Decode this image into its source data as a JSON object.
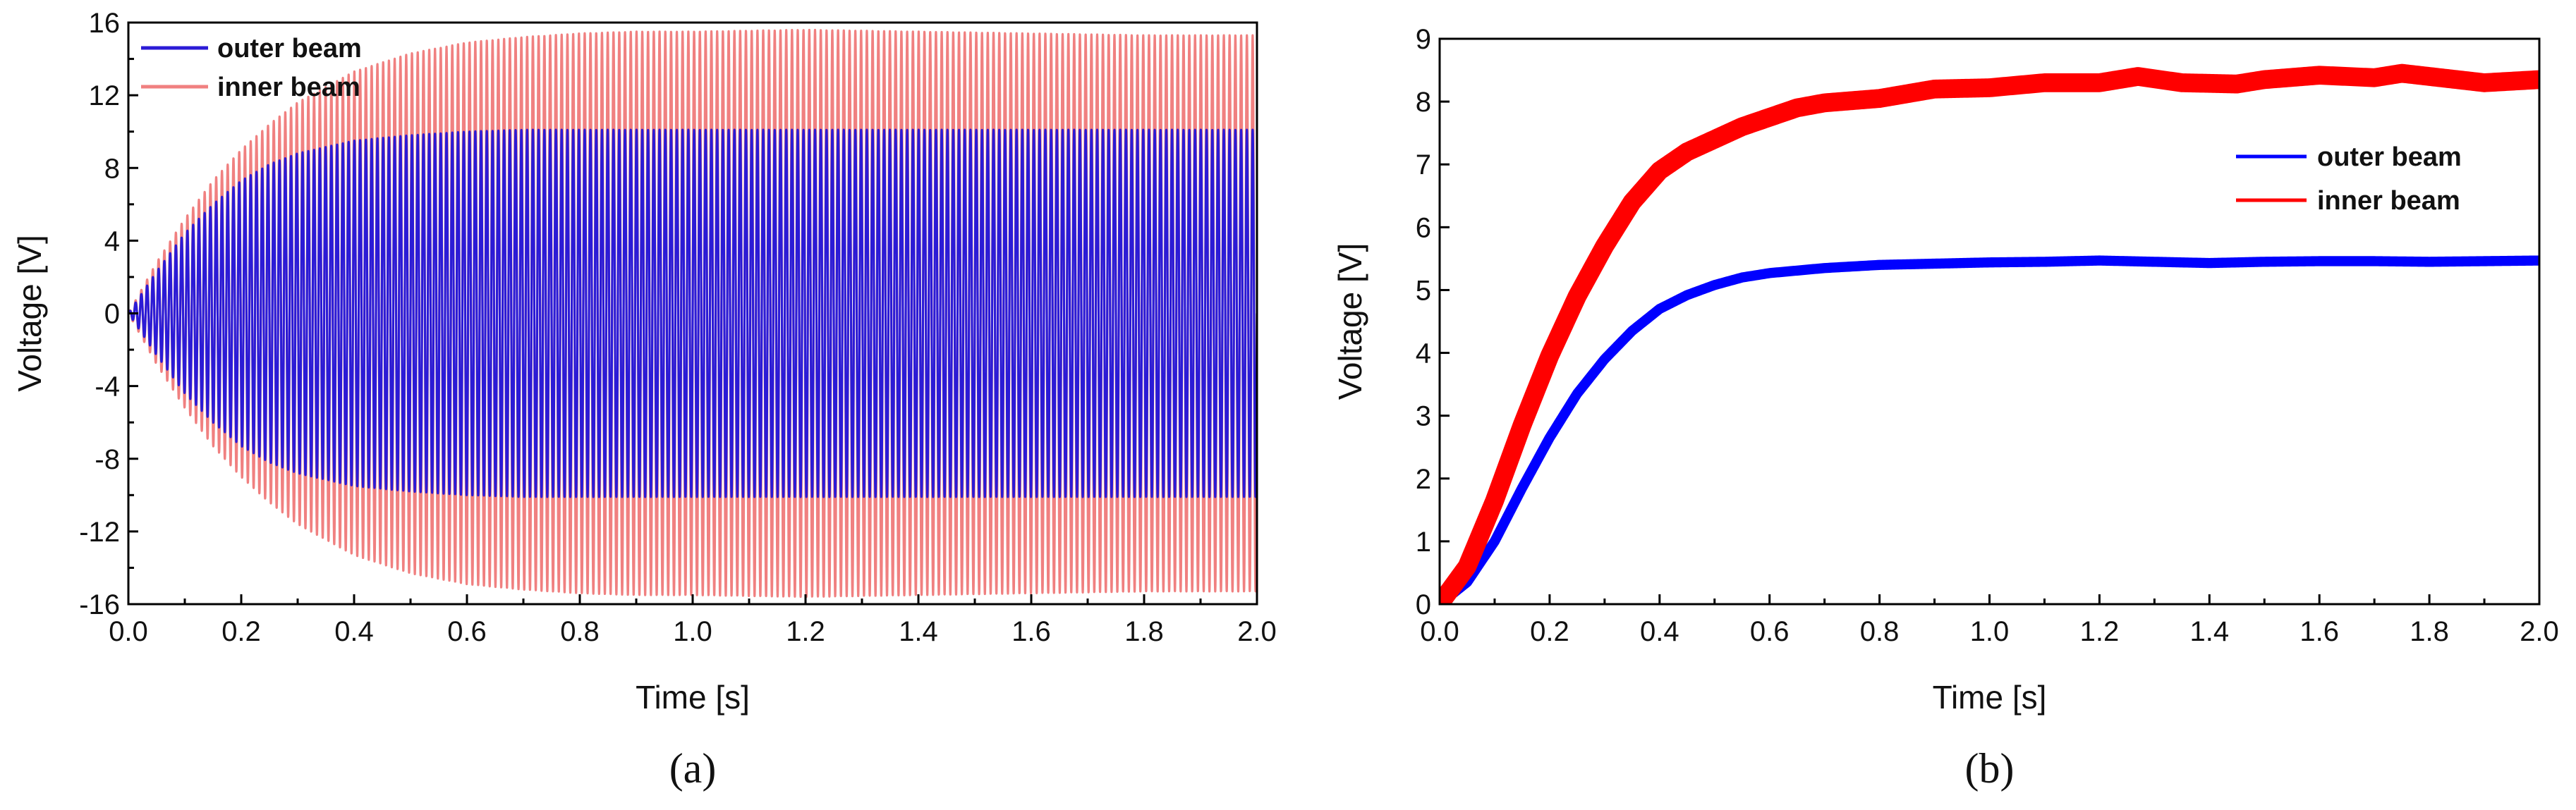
{
  "chart_data": [
    {
      "panel_label": "(a)",
      "type": "line",
      "title": "",
      "xlabel": "Time [s]",
      "ylabel": "Voltage [V]",
      "xlim": [
        0.0,
        2.0
      ],
      "ylim": [
        -16,
        16
      ],
      "x_ticks": [
        0.0,
        0.2,
        0.4,
        0.6,
        0.8,
        1.0,
        1.2,
        1.4,
        1.6,
        1.8,
        2.0
      ],
      "x_tick_labels": [
        "0.0",
        "0.2",
        "0.4",
        "0.6",
        "0.8",
        "1.0",
        "1.2",
        "1.4",
        "1.6",
        "1.8",
        "2.0"
      ],
      "y_ticks": [
        -16,
        -12,
        -8,
        -4,
        0,
        4,
        8,
        12,
        16
      ],
      "y_tick_labels": [
        "-16",
        "-12",
        "-8",
        "-4",
        "0",
        "4",
        "8",
        "12",
        "16"
      ],
      "legend_position": "top-left",
      "series": [
        {
          "name": "inner beam",
          "color": "#f08080",
          "kind": "oscillation",
          "frequency_hz": 98,
          "envelope": {
            "x": [
              0.0,
              0.05,
              0.1,
              0.15,
              0.2,
              0.25,
              0.3,
              0.4,
              0.5,
              0.6,
              0.7,
              0.8,
              0.9,
              1.0,
              1.2,
              1.4,
              1.6,
              1.8,
              2.0
            ],
            "amplitude": [
              0,
              2.8,
              5.2,
              7.3,
              9.0,
              10.4,
              11.6,
              13.3,
              14.3,
              14.9,
              15.2,
              15.4,
              15.5,
              15.5,
              15.6,
              15.5,
              15.4,
              15.3,
              15.3
            ]
          }
        },
        {
          "name": "outer beam",
          "color": "#2b1bd6",
          "kind": "oscillation",
          "frequency_hz": 98,
          "envelope": {
            "x": [
              0.0,
              0.05,
              0.1,
              0.15,
              0.2,
              0.25,
              0.3,
              0.4,
              0.5,
              0.6,
              0.7,
              0.8,
              0.9,
              1.0,
              1.2,
              1.4,
              1.6,
              1.8,
              2.0
            ],
            "amplitude": [
              0,
              2.3,
              4.4,
              6.0,
              7.3,
              8.2,
              8.8,
              9.5,
              9.8,
              10.0,
              10.1,
              10.1,
              10.1,
              10.1,
              10.1,
              10.1,
              10.1,
              10.1,
              10.1
            ]
          }
        }
      ]
    },
    {
      "panel_label": "(b)",
      "type": "line",
      "title": "",
      "xlabel": "Time [s]",
      "ylabel": "Voltage [V]",
      "xlim": [
        0.0,
        2.0
      ],
      "ylim": [
        0,
        9
      ],
      "x_ticks": [
        0.0,
        0.2,
        0.4,
        0.6,
        0.8,
        1.0,
        1.2,
        1.4,
        1.6,
        1.8,
        2.0
      ],
      "x_tick_labels": [
        "0.0",
        "0.2",
        "0.4",
        "0.6",
        "0.8",
        "1.0",
        "1.2",
        "1.4",
        "1.6",
        "1.8",
        "2.0"
      ],
      "y_ticks": [
        0,
        1,
        2,
        3,
        4,
        5,
        6,
        7,
        8,
        9
      ],
      "y_tick_labels": [
        "0",
        "1",
        "2",
        "3",
        "4",
        "5",
        "6",
        "7",
        "8",
        "9"
      ],
      "legend_position": "center-right",
      "series": [
        {
          "name": "outer beam",
          "color": "#0000ff",
          "x": [
            0.0,
            0.05,
            0.1,
            0.15,
            0.2,
            0.25,
            0.3,
            0.35,
            0.4,
            0.45,
            0.5,
            0.55,
            0.6,
            0.7,
            0.8,
            0.9,
            1.0,
            1.1,
            1.2,
            1.3,
            1.4,
            1.5,
            1.6,
            1.7,
            1.8,
            1.9,
            2.0
          ],
          "y": [
            0.0,
            0.35,
            1.0,
            1.85,
            2.65,
            3.35,
            3.9,
            4.35,
            4.7,
            4.92,
            5.08,
            5.2,
            5.27,
            5.35,
            5.4,
            5.42,
            5.44,
            5.45,
            5.47,
            5.45,
            5.43,
            5.45,
            5.46,
            5.46,
            5.45,
            5.46,
            5.47
          ],
          "band_halfwidth": 0.08
        },
        {
          "name": "inner beam",
          "color": "#ff0000",
          "x": [
            0.0,
            0.05,
            0.1,
            0.15,
            0.2,
            0.25,
            0.3,
            0.35,
            0.4,
            0.45,
            0.5,
            0.55,
            0.6,
            0.65,
            0.7,
            0.8,
            0.9,
            1.0,
            1.1,
            1.2,
            1.27,
            1.35,
            1.45,
            1.5,
            1.6,
            1.7,
            1.75,
            1.8,
            1.9,
            2.0
          ],
          "y": [
            0.0,
            0.6,
            1.65,
            2.85,
            3.95,
            4.9,
            5.7,
            6.4,
            6.9,
            7.2,
            7.4,
            7.6,
            7.75,
            7.9,
            7.98,
            8.05,
            8.2,
            8.22,
            8.3,
            8.3,
            8.4,
            8.3,
            8.28,
            8.35,
            8.42,
            8.38,
            8.45,
            8.4,
            8.3,
            8.35
          ],
          "band_halfwidth": 0.15
        }
      ]
    }
  ]
}
